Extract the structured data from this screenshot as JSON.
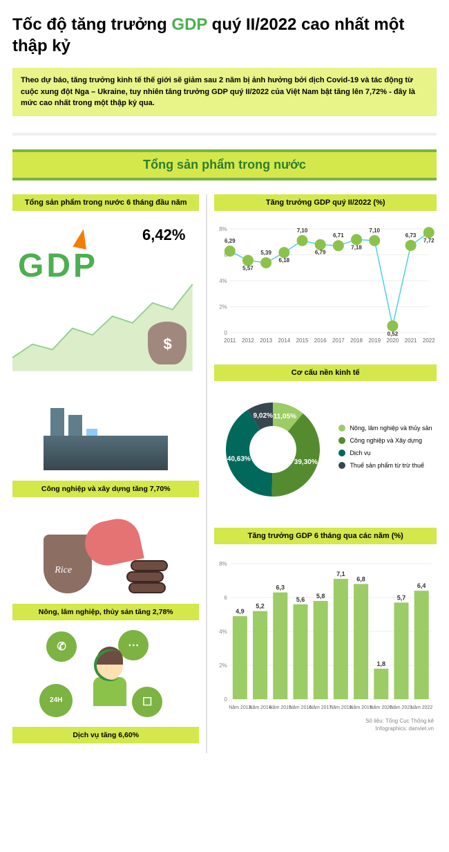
{
  "title": {
    "pre": "Tốc độ tăng trưởng ",
    "accent": "GDP",
    "post": " quý II/2022 cao nhất một thập kỷ"
  },
  "intro": "Theo dự báo, tăng trưởng kinh tế thế giới sẽ giảm sau 2 năm bị ảnh hưởng bởi dịch Covid-19 và tác động từ cuộc xung đột Nga – Ukraine, tuy nhiên tăng trưởng GDP quý II/2022 của Việt Nam bật tăng lên 7,72% - đây là mức cao nhất trong một thập kỷ qua.",
  "section_header": "Tổng sản phẩm trong nước",
  "left": {
    "header": "Tổng sản phẩm trong nước 6 tháng đầu năm",
    "gdp_pct": "6,42%",
    "gdp_word": "GDP",
    "industry_label": "Công nghiệp và xây dựng tăng 7,70%",
    "agri_label": "Nông, lâm nghiệp, thủy sản tăng 2,78%",
    "services_label": "Dịch vụ tăng 6,60%"
  },
  "linechart": {
    "header": "Tăng trưởng GDP quý II/2022 (%)",
    "years": [
      "2011",
      "2012",
      "2013",
      "2014",
      "2015",
      "2016",
      "2017",
      "2018",
      "2019",
      "2020",
      "2021",
      "2022"
    ],
    "values": [
      6.29,
      5.57,
      5.39,
      6.18,
      7.1,
      6.79,
      6.71,
      7.18,
      7.1,
      0.52,
      6.73,
      7.72
    ],
    "labels": [
      "6,29",
      "5,57",
      "5,39",
      "6,18",
      "7,10",
      "6,79",
      "6,71",
      "7,18",
      "7,10",
      "0,52",
      "6,73",
      "7,72"
    ],
    "ylim": [
      0,
      8
    ],
    "yticks": [
      "0",
      "2%",
      "4%",
      "6",
      "8%"
    ],
    "point_color": "#8BC34A",
    "line_color": "#4DD0E1",
    "grid_color": "#eeeeee",
    "label_color": "#333333"
  },
  "donut": {
    "header": "Cơ cấu nền kinh tế",
    "slices": [
      {
        "label": "Nông, lâm nghiệp và thủy sản",
        "value": 11.05,
        "display": "11,05%",
        "color": "#9CCC65"
      },
      {
        "label": "Công nghiệp và Xây dựng",
        "value": 39.3,
        "display": "39,30%",
        "color": "#558B2F"
      },
      {
        "label": "Dịch vụ",
        "value": 40.63,
        "display": "40,63%",
        "color": "#00695C"
      },
      {
        "label": "Thuế sản phẩm từ trừ thuế",
        "value": 9.02,
        "display": "9,02%",
        "color": "#37474F"
      }
    ]
  },
  "barchart": {
    "header": "Tăng trưởng GDP 6 tháng qua các năm (%)",
    "years": [
      "Năm 2013",
      "Năm 2014",
      "Năm 2015",
      "Năm 2016",
      "Năm 2017",
      "Năm 2018",
      "Năm 2019",
      "Năm 2020",
      "Năm 2021",
      "Năm 2022"
    ],
    "values": [
      4.9,
      5.2,
      6.3,
      5.6,
      5.8,
      7.1,
      6.8,
      1.8,
      5.7,
      6.4
    ],
    "labels": [
      "4,9",
      "5,2",
      "6,3",
      "5,6",
      "5,8",
      "7,1",
      "6,8",
      "1,8",
      "5,7",
      "6,4"
    ],
    "ylim": [
      0,
      8
    ],
    "yticks": [
      "0",
      "2%",
      "4%",
      "6",
      "8%"
    ],
    "bar_color": "#9CCC65",
    "grid_color": "#eeeeee"
  },
  "footer": {
    "source": "Số liệu: Tổng Cục Thống kê",
    "credit": "Infographics: danviet.vn"
  },
  "colors": {
    "accent": "#4CAF50",
    "header_bg": "#D4E84B",
    "header_border": "#7CB342",
    "intro_bg": "#E8F388"
  }
}
